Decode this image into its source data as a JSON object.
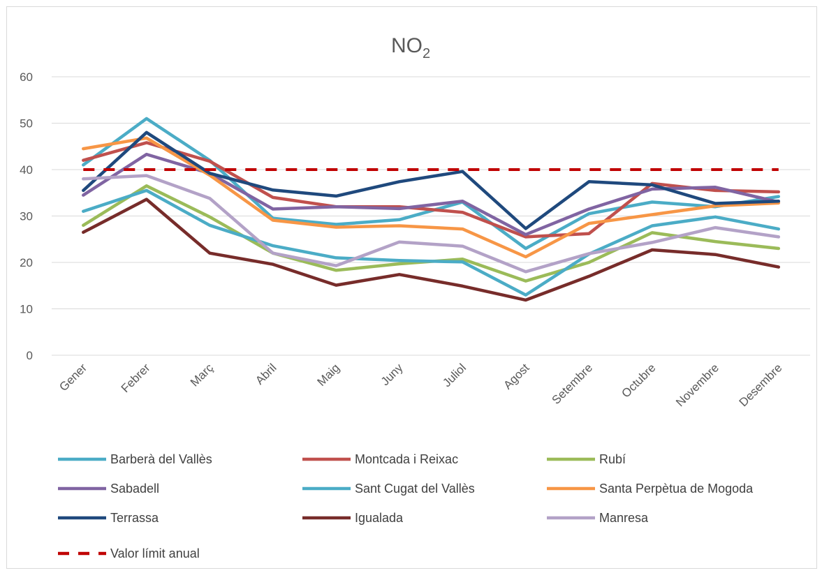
{
  "chart_data": {
    "type": "line",
    "title": {
      "main": "NO",
      "sub": "2"
    },
    "xlabel": "",
    "ylabel": "",
    "ylim": [
      0,
      60
    ],
    "yticks": [
      0,
      10,
      20,
      30,
      40,
      50,
      60
    ],
    "grid": "horizontal",
    "legend_position": "bottom",
    "categories": [
      "Gener",
      "Febrer",
      "Març",
      "Abril",
      "Maig",
      "Juny",
      "Juliol",
      "Agost",
      "Setembre",
      "Octubre",
      "Novembre",
      "Desembre"
    ],
    "series": [
      {
        "name": "Barberà del Vallès",
        "color": "#4bacc6",
        "dash": false,
        "values": [
          41,
          51,
          42,
          29.5,
          28.2,
          29.2,
          33,
          23,
          30.5,
          33,
          32,
          34.2
        ]
      },
      {
        "name": "Montcada i Reixac",
        "color": "#c0504d",
        "dash": false,
        "values": [
          42,
          45.8,
          41.8,
          34,
          32,
          32,
          30.8,
          25.5,
          26.2,
          37,
          35.5,
          35.2
        ]
      },
      {
        "name": "Rubí",
        "color": "#9bbb59",
        "dash": false,
        "values": [
          28,
          36.5,
          29.8,
          22,
          18.3,
          19.7,
          20.7,
          16,
          20,
          26.4,
          24.5,
          23
        ]
      },
      {
        "name": "Sabadell",
        "color": "#8064a2",
        "dash": false,
        "values": [
          34.5,
          43.3,
          39.2,
          31.5,
          32,
          31.6,
          33.2,
          26,
          31.5,
          35.8,
          36.2,
          33
        ]
      },
      {
        "name": "Sant Cugat del Vallès",
        "color": "#4bacc6",
        "dash": false,
        "values": [
          31,
          35.5,
          28,
          23.6,
          21,
          20.4,
          20.1,
          13,
          21.8,
          27.9,
          29.8,
          27.2
        ]
      },
      {
        "name": "Santa Perpètua de Mogoda",
        "color": "#f79646",
        "dash": false,
        "values": [
          44.5,
          46.8,
          38.8,
          29.1,
          27.6,
          27.9,
          27.2,
          21.2,
          28.4,
          30.3,
          32.2,
          32.8
        ]
      },
      {
        "name": "Terrassa",
        "color": "#1f497d",
        "dash": false,
        "values": [
          35.5,
          48,
          39.2,
          35.6,
          34.3,
          37.4,
          39.6,
          27.3,
          37.4,
          36.7,
          32.7,
          33.2
        ]
      },
      {
        "name": "Igualada",
        "color": "#772c2a",
        "dash": false,
        "values": [
          26.5,
          33.6,
          22,
          19.6,
          15.1,
          17.4,
          14.9,
          11.9,
          17,
          22.7,
          21.7,
          19
        ]
      },
      {
        "name": "Manresa",
        "color": "#b3a2c7",
        "dash": false,
        "values": [
          38,
          38.7,
          33.8,
          22,
          19.3,
          24.4,
          23.5,
          18,
          21.9,
          24.3,
          27.5,
          25.5
        ]
      },
      {
        "name": "Valor límit anual",
        "color": "#c00000",
        "dash": true,
        "values": [
          40,
          40,
          40,
          40,
          40,
          40,
          40,
          40,
          40,
          40,
          40,
          40
        ]
      }
    ]
  }
}
